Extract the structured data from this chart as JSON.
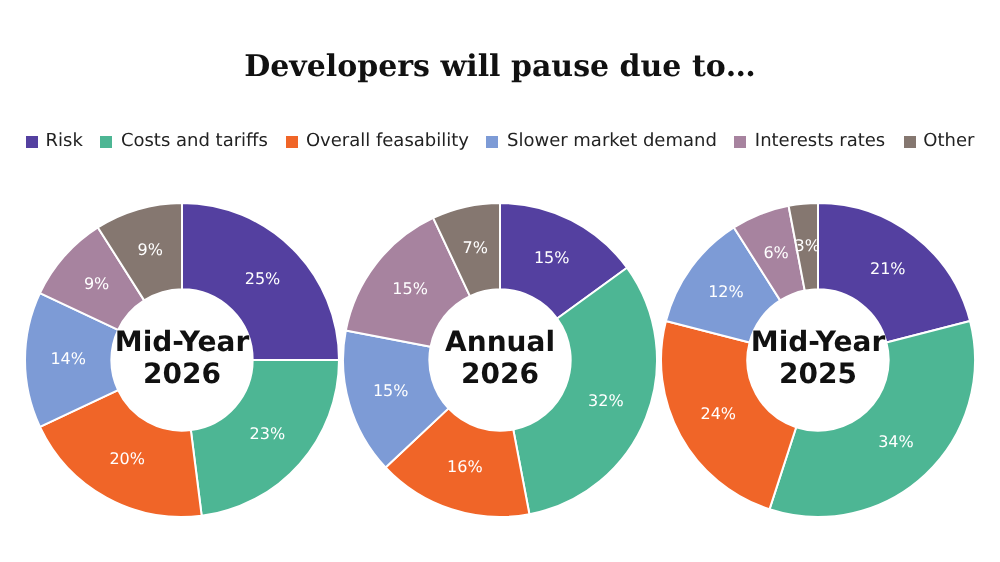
{
  "chart_data": [
    {
      "type": "donut",
      "title": "Developers will pause due to…",
      "legend": "top",
      "categories": [
        "Risk",
        "Costs and tariffs",
        "Overall feasability",
        "Slower market demand",
        "Interests rates",
        "Other"
      ],
      "values": [
        25,
        23,
        20,
        14,
        9,
        9
      ],
      "value_labels": [
        "25%",
        "23%",
        "20%",
        "14%",
        "9%",
        "9%"
      ],
      "colors": [
        "#5440a0",
        "#4db694",
        "#f06528",
        "#7d9bd6",
        "#a7839f",
        "#857770"
      ],
      "annotations": [
        "Mid-Year 2026"
      ]
    },
    {
      "type": "donut",
      "categories": [
        null,
        null,
        null,
        null,
        null,
        null
      ],
      "values": [
        15,
        32,
        16,
        15,
        15,
        7
      ],
      "value_labels": [
        "15%",
        "32%",
        "16%",
        "15%",
        "15%",
        "7%"
      ],
      "colors": [
        "#5440a0",
        "#4db694",
        "#f06528",
        "#7d9bd6",
        "#a7839f",
        "#857770"
      ],
      "annotations": [
        "Annual 2026"
      ]
    },
    {
      "type": "donut",
      "categories": [
        null,
        null,
        null,
        null,
        null,
        null
      ],
      "values": [
        21,
        34,
        24,
        12,
        6,
        3
      ],
      "value_labels": [
        "21%",
        "34%",
        "24%",
        "12%",
        "6%",
        "3%"
      ],
      "colors": [
        "#5440a0",
        "#4db694",
        "#f06528",
        "#7d9bd6",
        "#a7839f",
        "#857770"
      ],
      "annotations": [
        "Mid-Year 2025"
      ]
    }
  ]
}
